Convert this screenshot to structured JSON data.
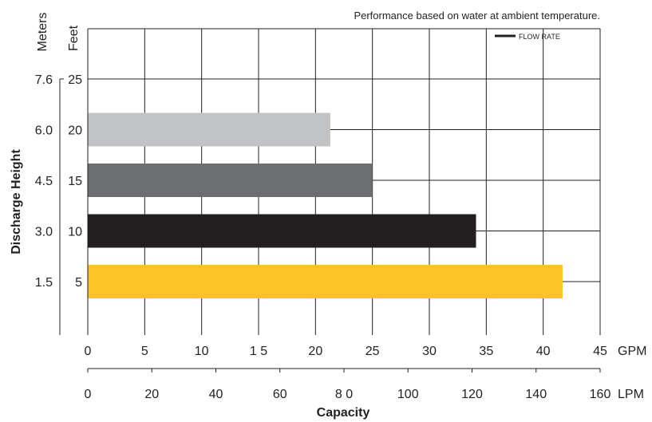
{
  "chart_data": {
    "type": "bar",
    "orientation": "horizontal",
    "note": "Performance based on water at ambient temperature.",
    "legend": {
      "label": "FLOW RATE",
      "position": "top-right"
    },
    "ylabel": "Discharge Height",
    "xlabel": "Capacity",
    "y_units": {
      "meters": "Meters",
      "feet": "Feet"
    },
    "y_ticks": [
      {
        "feet": "25",
        "meters": "7.6"
      },
      {
        "feet": "20",
        "meters": "6.0"
      },
      {
        "feet": "15",
        "meters": "4.5"
      },
      {
        "feet": "10",
        "meters": "3.0"
      },
      {
        "feet": "5",
        "meters": "1.5"
      }
    ],
    "categories": [
      "20",
      "15",
      "10",
      "5"
    ],
    "values": [
      21.3,
      25.0,
      34.1,
      41.7
    ],
    "bar_colors": [
      "#c1c2c4",
      "#6d6e71",
      "#231f20",
      "#fdc226"
    ],
    "xlim": [
      0,
      45
    ],
    "x_ticks_gpm": [
      "0",
      "5",
      "10",
      "1 5",
      "20",
      "25",
      "30",
      "35",
      "40",
      "45"
    ],
    "x_unit_gpm": "GPM",
    "x_ticks_lpm": [
      "0",
      "20",
      "40",
      "60",
      "8 0",
      "100",
      "120",
      "140",
      "160"
    ],
    "x_unit_lpm": "LPM",
    "grid": true
  }
}
